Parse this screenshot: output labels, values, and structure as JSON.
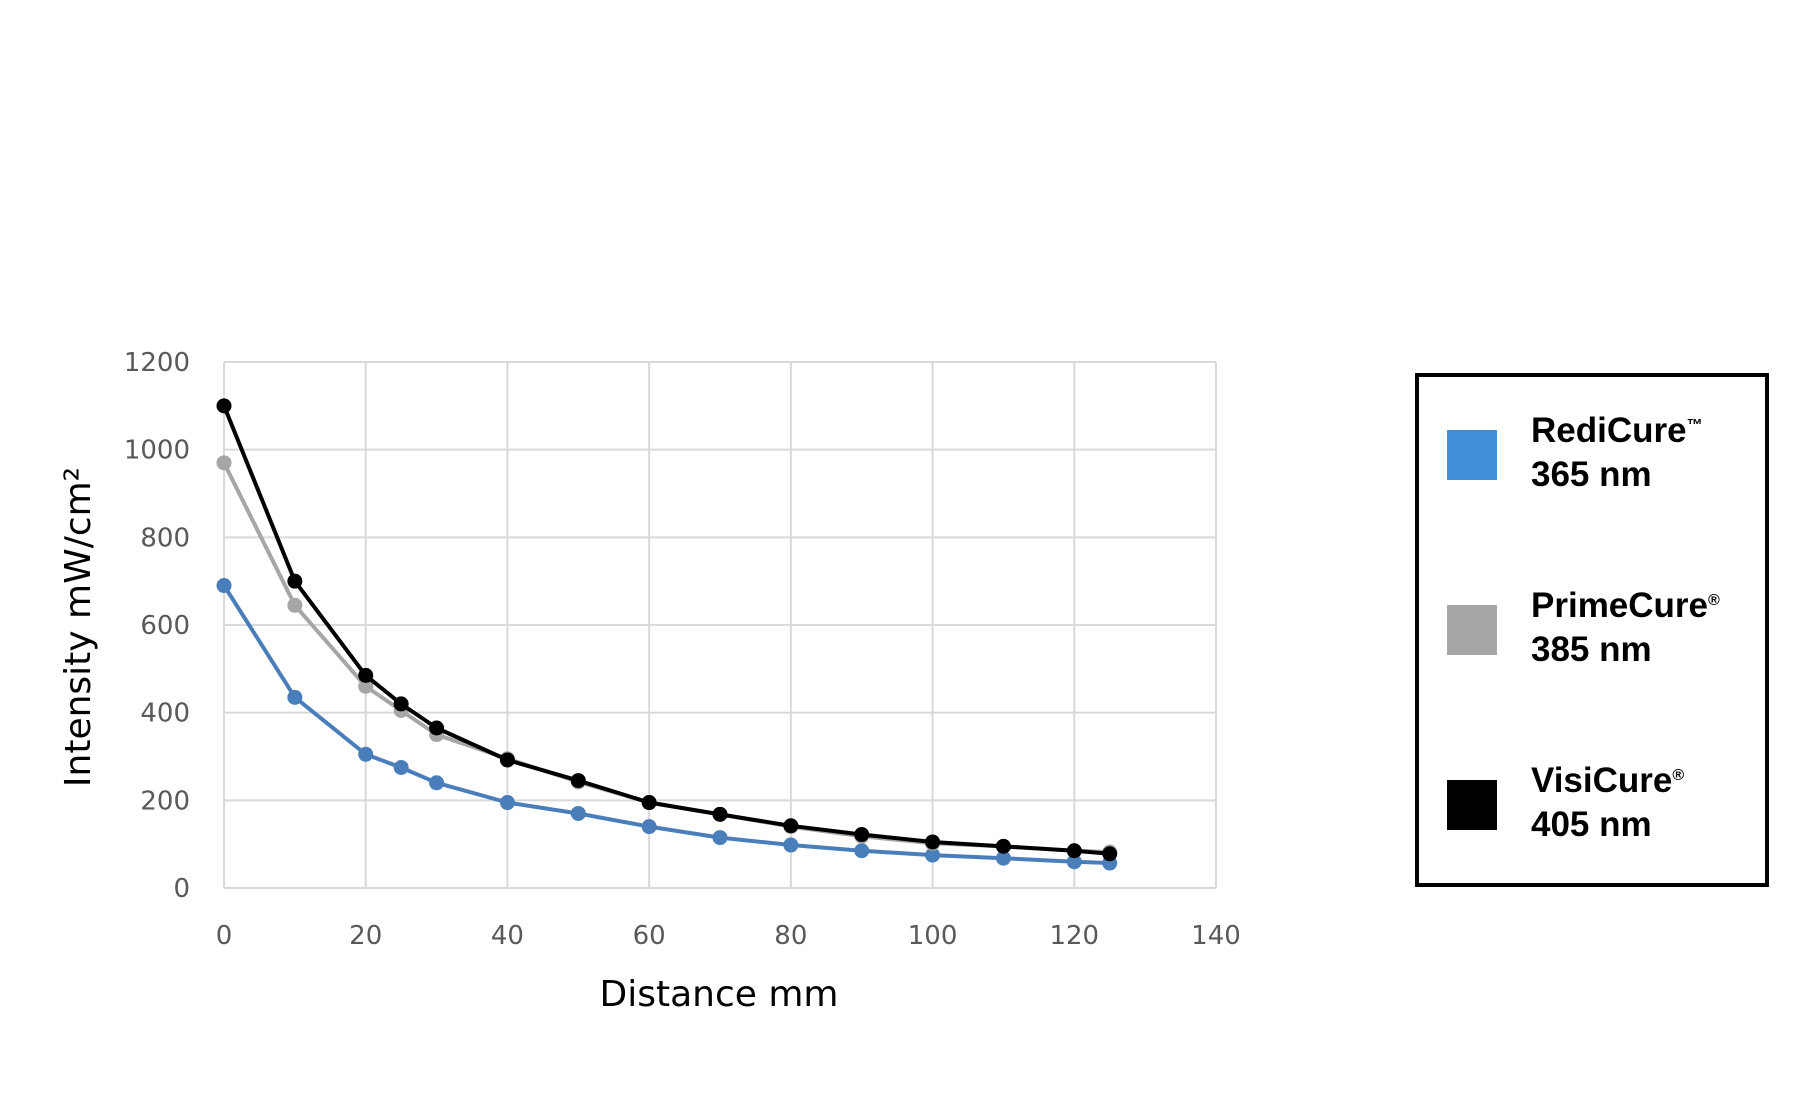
{
  "chart_data": {
    "type": "line",
    "xlabel": "Distance mm",
    "ylabel": "Intensity mW/cm²",
    "xlim": [
      0,
      140
    ],
    "ylim": [
      0,
      1200
    ],
    "x_ticks": [
      "0",
      "20",
      "40",
      "60",
      "80",
      "100",
      "120",
      "140"
    ],
    "y_ticks": [
      "0",
      "200",
      "400",
      "600",
      "800",
      "1000",
      "1200"
    ],
    "grid": true,
    "legend_position": "right",
    "x": [
      0,
      10,
      20,
      25,
      30,
      40,
      50,
      60,
      70,
      80,
      90,
      100,
      110,
      120,
      125
    ],
    "series": [
      {
        "name_main": "RediCure",
        "name_mark": "™",
        "name_sub": "365 nm",
        "color": "#4a7ebb",
        "legend_color": "#3f8fd8",
        "values": [
          690,
          435,
          305,
          275,
          240,
          195,
          170,
          140,
          115,
          98,
          85,
          75,
          68,
          60,
          57
        ]
      },
      {
        "name_main": "PrimeCure",
        "name_mark": "®",
        "name_sub": "385 nm",
        "color": "#a6a6a6",
        "legend_color": "#a6a6a6",
        "values": [
          970,
          645,
          460,
          405,
          350,
          295,
          242,
          195,
          168,
          140,
          118,
          102,
          95,
          85,
          82
        ]
      },
      {
        "name_main": "VisiCure",
        "name_mark": "®",
        "name_sub": "405 nm",
        "color": "#000000",
        "legend_color": "#000000",
        "values": [
          1100,
          700,
          485,
          420,
          365,
          292,
          245,
          195,
          168,
          142,
          122,
          105,
          95,
          85,
          78
        ]
      }
    ]
  }
}
